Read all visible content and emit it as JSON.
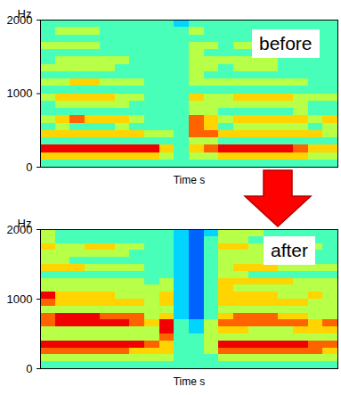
{
  "chart_data": [
    {
      "type": "heatmap",
      "annotation": "before",
      "y_label": "Hz",
      "x_label": "Time s",
      "ylim": [
        0,
        2000
      ],
      "yticks": [
        0,
        1000,
        2000
      ],
      "tick_labels": "y",
      "color": "jet",
      "zlim": [
        0,
        9
      ],
      "freq_bins": [
        0,
        100,
        200,
        300,
        400,
        500,
        600,
        700,
        800,
        900,
        1000,
        1100,
        1200,
        1300,
        1400,
        1500,
        1600,
        1700,
        1800,
        1900,
        2000
      ],
      "cells": [
        [
          4,
          4,
          4,
          4,
          4,
          4,
          4,
          4,
          4,
          4,
          4,
          4,
          4,
          4,
          4,
          4,
          4,
          4,
          4,
          4
        ],
        [
          6,
          6,
          6,
          6,
          6,
          6,
          6,
          6,
          5,
          4,
          5,
          5,
          6,
          6,
          6,
          6,
          6,
          6,
          5,
          5
        ],
        [
          8,
          8,
          8,
          8,
          8,
          8,
          8,
          8,
          6,
          4,
          6,
          7,
          8,
          8,
          8,
          8,
          8,
          7,
          6,
          6
        ],
        [
          4,
          4,
          4,
          4,
          4,
          4,
          4,
          4,
          4,
          4,
          5,
          5,
          4,
          4,
          4,
          4,
          4,
          4,
          4,
          4
        ],
        [
          6,
          6,
          6,
          6,
          6,
          6,
          6,
          5,
          5,
          4,
          7,
          7,
          6,
          6,
          6,
          6,
          6,
          6,
          6,
          5
        ],
        [
          4,
          5,
          4,
          4,
          4,
          5,
          4,
          4,
          4,
          4,
          7,
          6,
          4,
          5,
          5,
          5,
          5,
          5,
          4,
          5
        ],
        [
          5,
          6,
          7,
          6,
          6,
          6,
          5,
          4,
          4,
          4,
          7,
          6,
          5,
          6,
          6,
          6,
          6,
          6,
          5,
          6
        ],
        [
          4,
          4,
          4,
          4,
          4,
          4,
          4,
          4,
          4,
          4,
          5,
          5,
          4,
          4,
          4,
          4,
          4,
          5,
          4,
          4
        ],
        [
          4,
          5,
          5,
          5,
          5,
          5,
          4,
          4,
          4,
          4,
          5,
          5,
          5,
          5,
          5,
          5,
          5,
          5,
          4,
          4
        ],
        [
          5,
          6,
          6,
          6,
          6,
          5,
          5,
          4,
          4,
          4,
          6,
          5,
          5,
          6,
          6,
          6,
          6,
          5,
          5,
          5
        ],
        [
          4,
          4,
          4,
          4,
          4,
          4,
          4,
          4,
          4,
          4,
          4,
          4,
          4,
          4,
          4,
          4,
          4,
          4,
          4,
          4
        ],
        [
          5,
          5,
          6,
          6,
          5,
          5,
          5,
          4,
          4,
          4,
          5,
          5,
          5,
          5,
          5,
          5,
          5,
          5,
          4,
          4
        ],
        [
          4,
          4,
          4,
          4,
          4,
          4,
          4,
          4,
          4,
          4,
          5,
          4,
          4,
          4,
          4,
          4,
          4,
          4,
          4,
          4
        ],
        [
          5,
          5,
          5,
          5,
          5,
          4,
          4,
          4,
          4,
          4,
          5,
          5,
          4,
          5,
          5,
          5,
          4,
          4,
          4,
          4
        ],
        [
          4,
          5,
          5,
          5,
          5,
          5,
          4,
          4,
          4,
          4,
          5,
          5,
          5,
          5,
          5,
          5,
          4,
          4,
          4,
          4
        ],
        [
          4,
          4,
          4,
          4,
          4,
          4,
          4,
          4,
          4,
          4,
          5,
          4,
          4,
          4,
          4,
          4,
          4,
          4,
          4,
          4
        ],
        [
          5,
          5,
          5,
          5,
          4,
          4,
          4,
          4,
          4,
          4,
          5,
          5,
          4,
          5,
          5,
          4,
          4,
          4,
          4,
          4
        ],
        [
          4,
          4,
          4,
          4,
          4,
          4,
          4,
          4,
          4,
          4,
          4,
          4,
          4,
          4,
          4,
          4,
          4,
          4,
          4,
          4
        ],
        [
          4,
          5,
          5,
          5,
          4,
          4,
          4,
          4,
          4,
          4,
          5,
          4,
          4,
          4,
          4,
          4,
          4,
          4,
          4,
          4
        ],
        [
          4,
          4,
          4,
          4,
          4,
          4,
          4,
          4,
          4,
          3,
          4,
          4,
          4,
          4,
          4,
          4,
          4,
          4,
          4,
          4
        ]
      ]
    },
    {
      "type": "heatmap",
      "annotation": "after",
      "y_label": "Hz",
      "x_label": "Time s",
      "ylim": [
        0,
        2000
      ],
      "yticks": [
        0,
        1000,
        2000
      ],
      "tick_labels": "y",
      "color": "jet",
      "zlim": [
        0,
        9
      ],
      "freq_bins": [
        0,
        100,
        200,
        300,
        400,
        500,
        600,
        700,
        800,
        900,
        1000,
        1100,
        1200,
        1300,
        1400,
        1500,
        1600,
        1700,
        1800,
        1900,
        2000
      ],
      "cells": [
        [
          4,
          4,
          4,
          4,
          4,
          4,
          4,
          4,
          4,
          4,
          4,
          4,
          4,
          4,
          4,
          4,
          4,
          4,
          4,
          4
        ],
        [
          5,
          5,
          5,
          5,
          5,
          5,
          5,
          5,
          5,
          4,
          4,
          4,
          5,
          5,
          5,
          5,
          5,
          5,
          5,
          5
        ],
        [
          7,
          7,
          7,
          7,
          7,
          7,
          6,
          6,
          6,
          4,
          4,
          5,
          7,
          7,
          7,
          7,
          7,
          7,
          7,
          6
        ],
        [
          8,
          8,
          8,
          8,
          8,
          8,
          8,
          7,
          6,
          4,
          4,
          5,
          8,
          8,
          8,
          8,
          8,
          8,
          7,
          7
        ],
        [
          5,
          5,
          5,
          5,
          5,
          5,
          5,
          5,
          7,
          4,
          4,
          5,
          5,
          5,
          5,
          5,
          5,
          5,
          5,
          5
        ],
        [
          5,
          5,
          5,
          5,
          5,
          5,
          5,
          5,
          8,
          4,
          3,
          5,
          6,
          6,
          5,
          5,
          5,
          6,
          6,
          6
        ],
        [
          7,
          8,
          8,
          8,
          8,
          8,
          7,
          6,
          8,
          4,
          3,
          5,
          7,
          7,
          7,
          7,
          7,
          7,
          6,
          7
        ],
        [
          7,
          8,
          8,
          8,
          7,
          7,
          7,
          5,
          6,
          3,
          2,
          4,
          6,
          7,
          7,
          7,
          6,
          6,
          5,
          5
        ],
        [
          5,
          5,
          5,
          5,
          5,
          5,
          5,
          5,
          5,
          3,
          2,
          4,
          5,
          5,
          5,
          5,
          5,
          5,
          5,
          5
        ],
        [
          7,
          6,
          6,
          6,
          6,
          6,
          6,
          5,
          6,
          3,
          2,
          4,
          6,
          6,
          6,
          6,
          6,
          6,
          5,
          5
        ],
        [
          8,
          6,
          6,
          6,
          6,
          5,
          5,
          5,
          6,
          3,
          2,
          4,
          6,
          6,
          6,
          6,
          5,
          5,
          6,
          5
        ],
        [
          5,
          5,
          5,
          5,
          5,
          5,
          5,
          5,
          5,
          3,
          2,
          4,
          6,
          5,
          5,
          5,
          5,
          5,
          5,
          5
        ],
        [
          5,
          5,
          5,
          5,
          5,
          5,
          5,
          4,
          5,
          3,
          2,
          4,
          6,
          6,
          6,
          6,
          6,
          5,
          5,
          5
        ],
        [
          4,
          4,
          4,
          4,
          4,
          4,
          4,
          4,
          4,
          3,
          2,
          4,
          5,
          5,
          4,
          4,
          4,
          4,
          4,
          4
        ],
        [
          6,
          6,
          6,
          5,
          5,
          5,
          5,
          4,
          4,
          3,
          2,
          4,
          5,
          6,
          6,
          6,
          5,
          5,
          5,
          5
        ],
        [
          5,
          5,
          4,
          4,
          4,
          4,
          4,
          4,
          4,
          3,
          2,
          4,
          5,
          5,
          5,
          4,
          4,
          4,
          4,
          4
        ],
        [
          5,
          5,
          5,
          5,
          5,
          5,
          4,
          4,
          4,
          3,
          2,
          4,
          5,
          5,
          5,
          5,
          5,
          4,
          4,
          4
        ],
        [
          6,
          5,
          5,
          6,
          6,
          5,
          5,
          4,
          4,
          3,
          2,
          4,
          6,
          6,
          5,
          5,
          5,
          5,
          5,
          4
        ],
        [
          5,
          4,
          4,
          4,
          4,
          4,
          4,
          4,
          4,
          3,
          2,
          4,
          5,
          5,
          4,
          4,
          4,
          4,
          4,
          4
        ],
        [
          5,
          4,
          4,
          4,
          4,
          4,
          4,
          4,
          4,
          3,
          2,
          3,
          5,
          5,
          5,
          4,
          4,
          4,
          4,
          4
        ]
      ]
    }
  ]
}
